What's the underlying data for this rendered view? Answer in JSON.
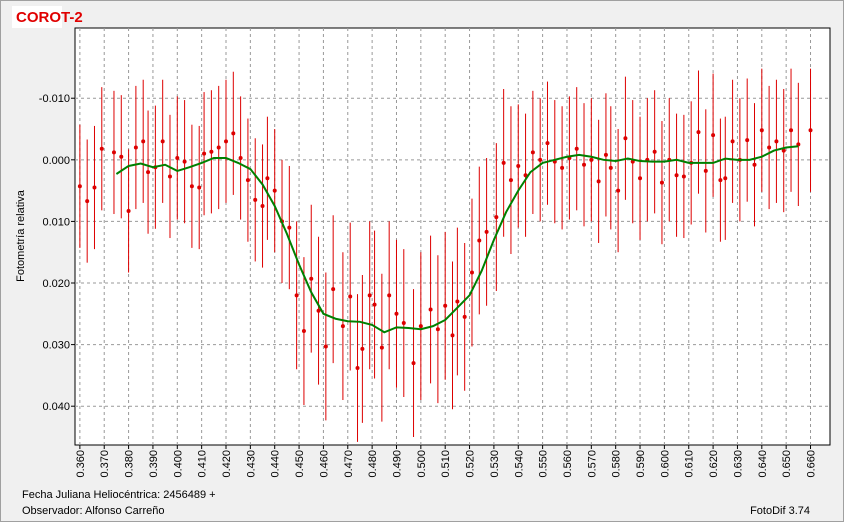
{
  "chart_data": {
    "type": "scatter",
    "title": "COROT-2",
    "y_label": "Fotometría relativa",
    "xlim": [
      0.358,
      0.668
    ],
    "ylim": [
      0.0463,
      -0.0214
    ],
    "grid": true,
    "xticks": [
      {
        "value": 0.36,
        "label": "0.360"
      },
      {
        "value": 0.37,
        "label": "0.370"
      },
      {
        "value": 0.38,
        "label": "0.380"
      },
      {
        "value": 0.39,
        "label": "0.390"
      },
      {
        "value": 0.4,
        "label": "0.400"
      },
      {
        "value": 0.41,
        "label": "0.410"
      },
      {
        "value": 0.42,
        "label": "0.420"
      },
      {
        "value": 0.43,
        "label": "0.430"
      },
      {
        "value": 0.44,
        "label": "0.440"
      },
      {
        "value": 0.45,
        "label": "0.450"
      },
      {
        "value": 0.46,
        "label": "0.460"
      },
      {
        "value": 0.47,
        "label": "0.470"
      },
      {
        "value": 0.48,
        "label": "0.480"
      },
      {
        "value": 0.49,
        "label": "0.490"
      },
      {
        "value": 0.5,
        "label": "0.500"
      },
      {
        "value": 0.51,
        "label": "0.510"
      },
      {
        "value": 0.52,
        "label": "0.520"
      },
      {
        "value": 0.53,
        "label": "0.530"
      },
      {
        "value": 0.54,
        "label": "0.540"
      },
      {
        "value": 0.55,
        "label": "0.550"
      },
      {
        "value": 0.56,
        "label": "0.560"
      },
      {
        "value": 0.57,
        "label": "0.570"
      },
      {
        "value": 0.58,
        "label": "0.580"
      },
      {
        "value": 0.59,
        "label": "0.590"
      },
      {
        "value": 0.6,
        "label": "0.600"
      },
      {
        "value": 0.61,
        "label": "0.610"
      },
      {
        "value": 0.62,
        "label": "0.620"
      },
      {
        "value": 0.63,
        "label": "0.630"
      },
      {
        "value": 0.64,
        "label": "0.640"
      },
      {
        "value": 0.65,
        "label": "0.650"
      },
      {
        "value": 0.66,
        "label": "0.660"
      }
    ],
    "yticks": [
      {
        "value": -0.01,
        "label": "-0.010"
      },
      {
        "value": 0,
        "label": "0.000"
      },
      {
        "value": 0.01,
        "label": "0.010"
      },
      {
        "value": 0.02,
        "label": "0.020"
      },
      {
        "value": 0.03,
        "label": "0.030"
      },
      {
        "value": 0.04,
        "label": "0.040"
      }
    ],
    "series": [
      {
        "type": "scatter",
        "color": "#dd0000",
        "x": [
          0.36,
          0.363,
          0.366,
          0.369,
          0.374,
          0.377,
          0.38,
          0.383,
          0.386,
          0.388,
          0.391,
          0.394,
          0.397,
          0.4,
          0.403,
          0.406,
          0.409,
          0.411,
          0.414,
          0.417,
          0.42,
          0.423,
          0.426,
          0.429,
          0.432,
          0.435,
          0.437,
          0.44,
          0.443,
          0.446,
          0.449,
          0.452,
          0.455,
          0.458,
          0.461,
          0.464,
          0.468,
          0.471,
          0.474,
          0.476,
          0.479,
          0.481,
          0.484,
          0.487,
          0.49,
          0.493,
          0.497,
          0.5,
          0.504,
          0.507,
          0.51,
          0.513,
          0.515,
          0.518,
          0.521,
          0.524,
          0.527,
          0.531,
          0.534,
          0.537,
          0.54,
          0.543,
          0.546,
          0.549,
          0.552,
          0.555,
          0.558,
          0.561,
          0.564,
          0.567,
          0.57,
          0.573,
          0.576,
          0.578,
          0.581,
          0.584,
          0.587,
          0.59,
          0.593,
          0.596,
          0.599,
          0.602,
          0.605,
          0.608,
          0.611,
          0.614,
          0.617,
          0.62,
          0.623,
          0.625,
          0.628,
          0.631,
          0.634,
          0.637,
          0.64,
          0.643,
          0.646,
          0.649,
          0.652,
          0.655,
          0.66
        ],
        "values": [
          0.0043,
          0.0067,
          0.0045,
          -0.0018,
          -0.0012,
          -0.0005,
          0.0083,
          -0.002,
          -0.003,
          0.002,
          0.0012,
          -0.003,
          0.0027,
          -0.0003,
          0.0003,
          0.0043,
          0.0045,
          -0.001,
          -0.0013,
          -0.002,
          -0.003,
          -0.0043,
          -0.0003,
          0.0033,
          0.0065,
          0.0075,
          0.003,
          0.005,
          0.01,
          0.011,
          0.022,
          0.0278,
          0.0193,
          0.0245,
          0.0303,
          0.021,
          0.027,
          0.0222,
          0.0338,
          0.0307,
          0.022,
          0.0235,
          0.0305,
          0.022,
          0.025,
          0.0265,
          0.033,
          0.027,
          0.0243,
          0.0275,
          0.0237,
          0.0285,
          0.023,
          0.0255,
          0.0183,
          0.0131,
          0.0117,
          0.0093,
          0.0005,
          0.0033,
          0.001,
          0.0025,
          -0.0012,
          0,
          -0.0027,
          0.0003,
          0.0013,
          -0.0003,
          -0.0018,
          0.0008,
          0,
          0.0035,
          -0.0008,
          0.0013,
          0.005,
          -0.0035,
          0.0003,
          0.003,
          0,
          -0.0013,
          0.0037,
          0,
          0.0025,
          0.0027,
          0.0005,
          -0.0045,
          0.0018,
          -0.004,
          0.0033,
          0.003,
          -0.003,
          0,
          -0.0032,
          0.0008,
          -0.0048,
          -0.002,
          -0.003,
          -0.0015,
          -0.0048,
          -0.0025,
          -0.0048
        ],
        "errors": [
          0.01,
          0.01,
          0.01,
          0.01,
          0.01,
          0.01,
          0.01,
          0.01,
          0.01,
          0.01,
          0.01,
          0.01,
          0.01,
          0.01,
          0.01,
          0.01,
          0.01,
          0.01,
          0.01,
          0.01,
          0.01,
          0.01,
          0.01,
          0.01,
          0.01,
          0.01,
          0.01,
          0.01,
          0.01,
          0.01,
          0.012,
          0.012,
          0.012,
          0.012,
          0.012,
          0.012,
          0.012,
          0.012,
          0.012,
          0.012,
          0.012,
          0.012,
          0.012,
          0.012,
          0.012,
          0.012,
          0.012,
          0.012,
          0.012,
          0.012,
          0.012,
          0.012,
          0.012,
          0.012,
          0.012,
          0.012,
          0.012,
          0.012,
          0.012,
          0.012,
          0.01,
          0.01,
          0.01,
          0.01,
          0.01,
          0.01,
          0.01,
          0.01,
          0.01,
          0.01,
          0.01,
          0.01,
          0.01,
          0.01,
          0.01,
          0.01,
          0.01,
          0.01,
          0.01,
          0.01,
          0.01,
          0.01,
          0.01,
          0.01,
          0.01,
          0.01,
          0.01,
          0.01,
          0.01,
          0.01,
          0.01,
          0.01,
          0.01,
          0.01,
          0.01,
          0.01,
          0.01,
          0.01,
          0.01,
          0.01,
          0.01
        ]
      },
      {
        "type": "line",
        "color": "#008000",
        "x": [
          0.375,
          0.38,
          0.385,
          0.39,
          0.395,
          0.4,
          0.405,
          0.41,
          0.415,
          0.42,
          0.425,
          0.43,
          0.435,
          0.44,
          0.445,
          0.45,
          0.455,
          0.46,
          0.465,
          0.47,
          0.475,
          0.48,
          0.485,
          0.49,
          0.495,
          0.5,
          0.505,
          0.51,
          0.515,
          0.52,
          0.525,
          0.53,
          0.535,
          0.54,
          0.545,
          0.55,
          0.555,
          0.56,
          0.565,
          0.57,
          0.575,
          0.58,
          0.585,
          0.59,
          0.595,
          0.6,
          0.605,
          0.61,
          0.615,
          0.62,
          0.625,
          0.63,
          0.635,
          0.64,
          0.645,
          0.65,
          0.655
        ],
        "values": [
          0.0023,
          0.001,
          0.0006,
          0.0012,
          0.0008,
          0.0018,
          0.0012,
          0.0005,
          -0.0003,
          -0.0003,
          0.0005,
          0.0015,
          0.004,
          0.0075,
          0.012,
          0.017,
          0.0215,
          0.025,
          0.0258,
          0.0262,
          0.0263,
          0.0268,
          0.028,
          0.0272,
          0.0273,
          0.0275,
          0.027,
          0.026,
          0.024,
          0.022,
          0.018,
          0.013,
          0.0085,
          0.005,
          0.002,
          0.0005,
          0,
          -0.0005,
          -0.0008,
          -0.0005,
          0,
          0.0002,
          -0.0002,
          0.0002,
          0.0003,
          0.0003,
          0,
          0.0005,
          0.0005,
          0.0005,
          -0.0002,
          0,
          0,
          -0.0005,
          -0.0015,
          -0.002,
          -0.0022
        ]
      }
    ]
  },
  "footer": {
    "date_label": "Fecha Juliana Heliocéntrica: 2456489 +",
    "observer": "Observador: Alfonso Carreño",
    "software": "FotoDif 3.74"
  }
}
